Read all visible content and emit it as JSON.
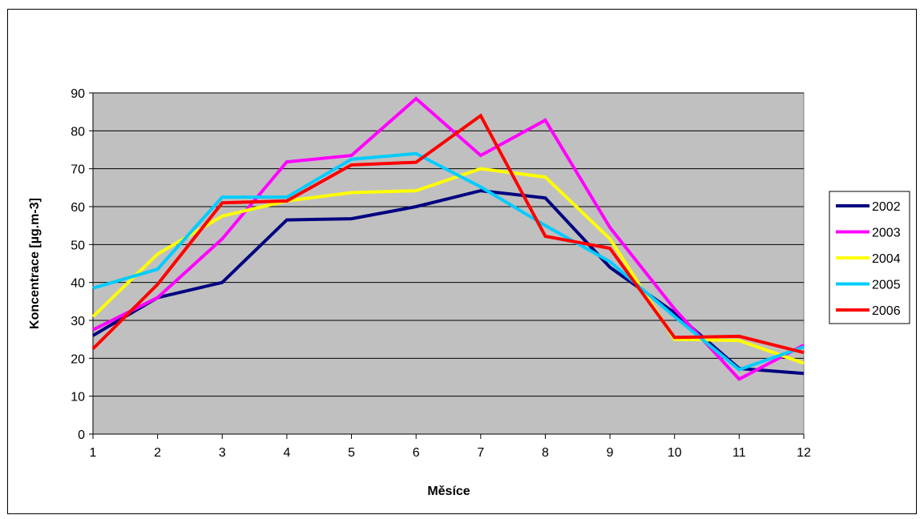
{
  "chart_data": {
    "type": "line",
    "xlabel": "Měsíce",
    "ylabel": "Koncentrace [µg.m-3]",
    "x": [
      1,
      2,
      3,
      4,
      5,
      6,
      7,
      8,
      9,
      10,
      11,
      12
    ],
    "ylim": [
      0,
      90
    ],
    "yticks": [
      0,
      10,
      20,
      30,
      40,
      50,
      60,
      70,
      80,
      90
    ],
    "grid": true,
    "plot_background": "#c0c0c0",
    "legend_position": "right",
    "series": [
      {
        "name": "2002",
        "color": "#000080",
        "values": [
          26,
          36,
          40,
          56.5,
          56.8,
          60,
          64.2,
          62.3,
          44,
          32,
          17.3,
          16
        ]
      },
      {
        "name": "2003",
        "color": "#ff00ff",
        "values": [
          27.5,
          36,
          51.5,
          71.8,
          73.5,
          88.5,
          73.5,
          82.8,
          54.5,
          33,
          14.5,
          23.5
        ]
      },
      {
        "name": "2004",
        "color": "#ffff00",
        "values": [
          31,
          47.5,
          57.5,
          61.5,
          63.7,
          64.2,
          70,
          67.8,
          51.5,
          25,
          24.7,
          18.7
        ]
      },
      {
        "name": "2005",
        "color": "#00ccff",
        "values": [
          38.5,
          43.5,
          62.5,
          62.5,
          72.5,
          74,
          65.2,
          55,
          45.5,
          31,
          17,
          23
        ]
      },
      {
        "name": "2006",
        "color": "#ff0000",
        "values": [
          22.5,
          39.5,
          61,
          61.5,
          71,
          71.7,
          84,
          52.2,
          49,
          25.5,
          25.8,
          21.5
        ]
      }
    ]
  }
}
